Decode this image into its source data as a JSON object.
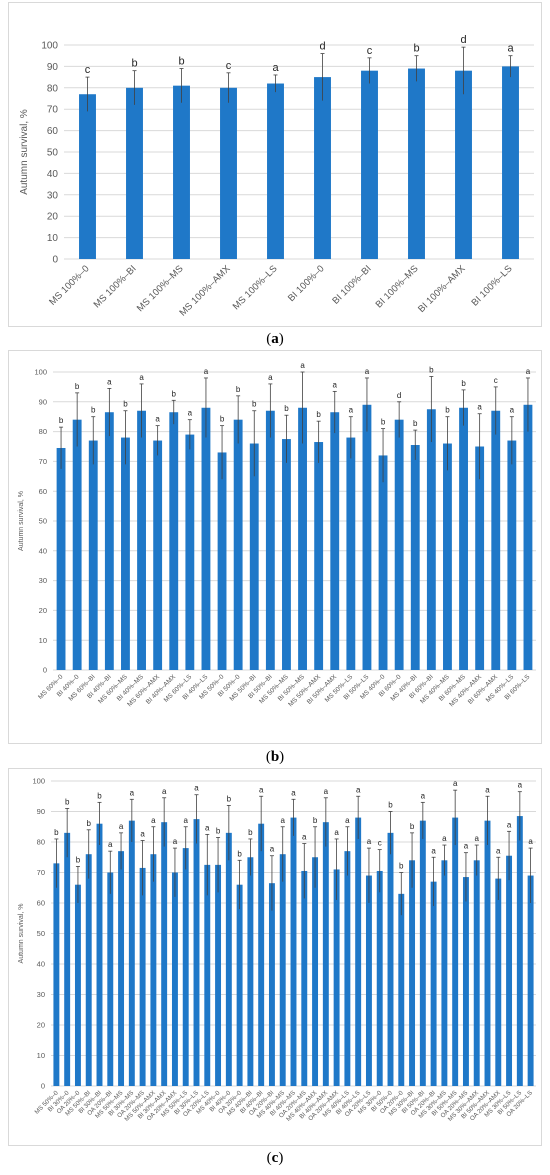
{
  "captions": {
    "a": "a",
    "b": "b",
    "c": "c"
  },
  "colors": {
    "bar": "#1f78c8",
    "grid": "#d9d9d9",
    "text": "#595959",
    "error": "#404040"
  },
  "chart_data": [
    {
      "type": "bar",
      "panel": "a",
      "ylabel": "Autumn survival, %",
      "ylim": [
        0,
        100
      ],
      "yticks": [
        0,
        10,
        20,
        30,
        40,
        50,
        60,
        70,
        80,
        90,
        100
      ],
      "grid": true,
      "categories": [
        "MS 100%–0",
        "MS 100%–BI",
        "MS 100%–MS",
        "MS 100%–AMX",
        "MS 100%–LS",
        "BI 100%–0",
        "BI 100%–BI",
        "BI 100%–MS",
        "BI 100%–AMX",
        "BI 100%–LS"
      ],
      "values": [
        77,
        80,
        81,
        80,
        82,
        85,
        88,
        89,
        88,
        90
      ],
      "errors": [
        8,
        8,
        8,
        7,
        4,
        11,
        6,
        6,
        11,
        5
      ],
      "letters": [
        "c",
        "b",
        "b",
        "c",
        "a",
        "d",
        "c",
        "b",
        "d",
        "a"
      ]
    },
    {
      "type": "bar",
      "panel": "b",
      "ylabel": "Autumn survival, %",
      "ylim": [
        0,
        100
      ],
      "yticks": [
        0,
        10,
        20,
        30,
        40,
        50,
        60,
        70,
        80,
        90,
        100
      ],
      "grid": true,
      "categories": [
        "MS 60%–0",
        "BI 40%–0",
        "MS 60%–BI",
        "BI 40%–BI",
        "MS 60%–MS",
        "BI 40%–MS",
        "MS 60%–AMX",
        "BI 40%–AMX",
        "MS 60%–LS",
        "BI 40%–LS",
        "MS 50%–0",
        "BI 50%–0",
        "MS 50%–BI",
        "BI 50%–BI",
        "MS 50%–MS",
        "BI 50%–MS",
        "MS 50%–AMX",
        "BI 50%–AMX",
        "MS 50%–LS",
        "BI 50%–LS",
        "MS 40%–0",
        "BI 60%–0",
        "MS 40%–BI",
        "BI 60%–BI",
        "MS 40%–MS",
        "BI 60%–MS",
        "MS 40%–AMX",
        "BI 60%–AMX",
        "MS 40%–LS",
        "BI 60%–LS"
      ],
      "values": [
        74.5,
        84,
        77,
        86.5,
        78,
        87,
        77,
        86.5,
        79,
        88,
        73,
        84,
        76,
        87,
        77.5,
        88,
        76.5,
        86.5,
        78,
        89,
        72,
        84,
        75.5,
        87.5,
        76,
        88,
        75,
        87,
        77,
        89
      ],
      "errors": [
        7,
        9,
        8,
        8,
        9,
        9,
        5,
        4,
        5,
        10,
        9,
        8,
        11,
        9,
        8,
        12,
        7,
        7,
        7,
        9,
        9,
        6,
        5,
        11,
        9,
        6,
        11,
        8,
        8,
        9
      ],
      "letters": [
        "b",
        "b",
        "b",
        "a",
        "b",
        "a",
        "a",
        "b",
        "a",
        "a",
        "b",
        "b",
        "b",
        "a",
        "b",
        "a",
        "b",
        "a",
        "a",
        "a",
        "b",
        "d",
        "b",
        "b",
        "b",
        "b",
        "a",
        "c",
        "a",
        "a"
      ]
    },
    {
      "type": "bar",
      "panel": "c",
      "ylabel": "Autumn survival, %",
      "ylim": [
        0,
        100
      ],
      "yticks": [
        0,
        10,
        20,
        30,
        40,
        50,
        60,
        70,
        80,
        90,
        100
      ],
      "grid": true,
      "categories": [
        "MS 50%–0",
        "BI 30%–0",
        "OA 20%–0",
        "MS 50%–BI",
        "BI 30%–BI",
        "OA 20%–BI",
        "MS 50%–MS",
        "BI 30%–MS",
        "OA 20%–MS",
        "MS 50%–AMX",
        "BI 30%–AMX",
        "OA 20%–AMX",
        "MS 50%–LS",
        "BI 30%–LS",
        "OA 20%–LS",
        "MS 40%–0",
        "BI 40%–0",
        "OA 20%–0",
        "MS 40%–BI",
        "BI 40%–BI",
        "OA 20%–BI",
        "MS 40%–MS",
        "BI 40%–MS",
        "OA 20%–MS",
        "MS 40%–AMX",
        "BI 40%–AMX",
        "OA 20%–AMX",
        "MS 40%–LS",
        "BI 40%–LS",
        "OA 20%–LS",
        "MS 30%–0",
        "BI 50%–0",
        "OA 20%–0",
        "MS 30%–BI",
        "BI 50%–BI",
        "OA 20%–BI",
        "MS 30%–MS",
        "BI 50%–MS",
        "OA 20%–MS",
        "MS 30%–AMX",
        "BI 50%–AMX",
        "OA 20%–AMX",
        "MS 30%–LS",
        "BI 50%–LS",
        "OA 20%–LS"
      ],
      "values": [
        73,
        83,
        66,
        76,
        86,
        70,
        77,
        87,
        71.5,
        76,
        86.5,
        70,
        78,
        87.5,
        72.5,
        72.5,
        83,
        66,
        75,
        86,
        66.5,
        76,
        88,
        70.5,
        75,
        86.5,
        71,
        77,
        88,
        69,
        70.5,
        83,
        63,
        74,
        87,
        67,
        74,
        88,
        68.5,
        74,
        87,
        68,
        75.5,
        88.5,
        69
      ],
      "errors": [
        8,
        8,
        6,
        8,
        7,
        7,
        6,
        7,
        9,
        9,
        8,
        8,
        7,
        8,
        10,
        9,
        9,
        8,
        6,
        9,
        9,
        9,
        6,
        9,
        10,
        8,
        10,
        8,
        7,
        9,
        7,
        7,
        7,
        9,
        6,
        8,
        5,
        9,
        8,
        5,
        8,
        7,
        8,
        8,
        9
      ],
      "letters": [
        "b",
        "b",
        "b",
        "b",
        "b",
        "a",
        "a",
        "a",
        "a",
        "a",
        "a",
        "a",
        "a",
        "a",
        "a",
        "b",
        "b",
        "b",
        "b",
        "a",
        "a",
        "a",
        "a",
        "a",
        "b",
        "a",
        "a",
        "a",
        "a",
        "a",
        "c",
        "b",
        "b",
        "b",
        "a",
        "a",
        "a",
        "a",
        "a",
        "a",
        "a",
        "a",
        "a",
        "a",
        "a"
      ]
    }
  ]
}
